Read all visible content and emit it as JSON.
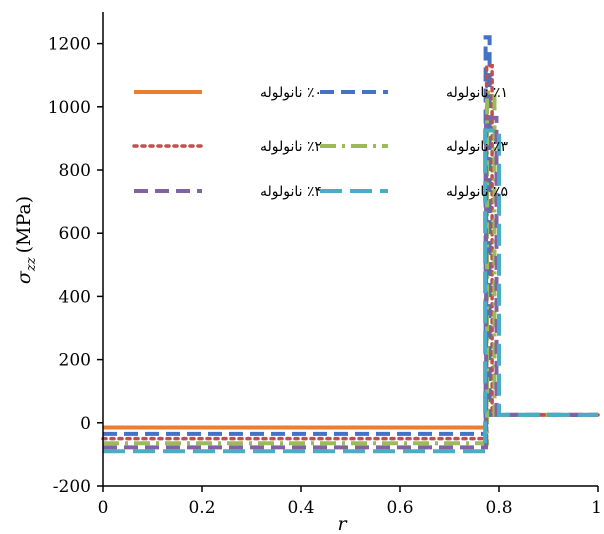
{
  "chart_data": {
    "type": "line",
    "xlabel": "r",
    "ylabel_symbol": "σ",
    "ylabel_subscript": "zz",
    "ylabel_unit": "(MPa)",
    "xlim": [
      0,
      1
    ],
    "ylim": [
      -200,
      1300
    ],
    "xticks": [
      "0",
      "0.2",
      "0.4",
      "0.6",
      "0.8",
      "1"
    ],
    "xtick_values": [
      0,
      0.2,
      0.4,
      0.6,
      0.8,
      1
    ],
    "yticks": [
      "-200",
      "0",
      "200",
      "400",
      "600",
      "800",
      "1000",
      "1200"
    ],
    "ytick_values": [
      -200,
      0,
      200,
      400,
      600,
      800,
      1000,
      1200
    ],
    "grid": false,
    "legend_position": "top-left",
    "series": [
      {
        "name": "٪۰ نانولوله",
        "color": "#ED7D31",
        "style": "solid",
        "x": [
          0,
          0.773,
          0.773,
          1
        ],
        "y": [
          -15,
          -15,
          25,
          25
        ]
      },
      {
        "name": "٪۱ نانولوله",
        "color": "#4472C4",
        "style": "dash",
        "x": [
          0,
          0.773,
          0.773,
          0.781,
          0.781,
          0.79,
          0.79,
          1
        ],
        "y": [
          -35,
          -35,
          1220,
          1220,
          25,
          25,
          25,
          25
        ]
      },
      {
        "name": "٪۲ نانولوله",
        "color": "#C0504D",
        "style": "dot",
        "x": [
          0,
          0.775,
          0.775,
          0.786,
          0.786,
          1
        ],
        "y": [
          -50,
          -50,
          1130,
          1130,
          25,
          25
        ]
      },
      {
        "name": "٪۳ نانولوله",
        "color": "#9BBB59",
        "style": "dashdot",
        "x": [
          0,
          0.776,
          0.776,
          0.791,
          0.791,
          1
        ],
        "y": [
          -65,
          -65,
          1045,
          1045,
          25,
          25
        ]
      },
      {
        "name": "٪۴ نانولوله",
        "color": "#8064A2",
        "style": "dash",
        "x": [
          0,
          0.774,
          0.774,
          0.795,
          0.795,
          1
        ],
        "y": [
          -78,
          -78,
          965,
          965,
          25,
          25
        ]
      },
      {
        "name": "٪۵ نانولوله",
        "color": "#4BACC6",
        "style": "longdash",
        "x": [
          0,
          0.772,
          0.772,
          0.8,
          0.8,
          1
        ],
        "y": [
          -90,
          -90,
          925,
          925,
          25,
          25
        ]
      }
    ]
  }
}
